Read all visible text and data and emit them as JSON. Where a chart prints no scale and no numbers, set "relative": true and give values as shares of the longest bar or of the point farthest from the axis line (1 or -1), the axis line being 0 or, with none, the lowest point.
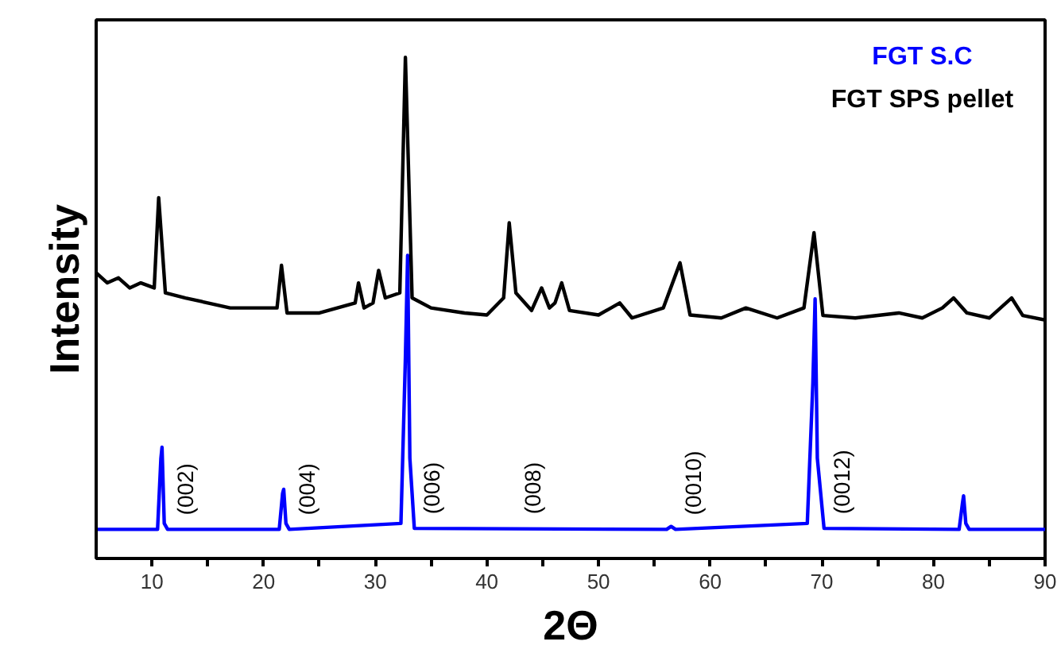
{
  "chart_data": {
    "type": "line",
    "relative": true,
    "xlabel": "2Θ",
    "ylabel": "Intensity",
    "xlim": [
      5,
      90
    ],
    "xticks": [
      10,
      {
        "value": 15,
        "label": null
      },
      20,
      {
        "value": 25,
        "label": null
      },
      30,
      {
        "value": 35,
        "label": null
      },
      40,
      {
        "value": 45,
        "label": null
      },
      50,
      {
        "value": 55,
        "label": null
      },
      60,
      {
        "value": 65,
        "label": null
      },
      70,
      {
        "value": 75,
        "label": null
      },
      80,
      {
        "value": 85,
        "label": null
      },
      90
    ],
    "legend": "top right",
    "grid": false,
    "marker": "none",
    "line_style": "solid",
    "series": [
      {
        "name": "FGT S.C",
        "color": "#0000ff",
        "x": [
          5,
          10.5,
          10.8,
          10.9,
          11.1,
          11.4,
          21.4,
          21.7,
          21.8,
          22.0,
          22.3,
          32.3,
          32.7,
          32.9,
          33.1,
          33.5,
          56.1,
          56.5,
          56.9,
          68.7,
          69.2,
          69.4,
          69.6,
          70.2,
          82.3,
          82.6,
          82.7,
          82.9,
          83.2,
          90
        ],
        "values": [
          0.058,
          0.058,
          0.2,
          0.222,
          0.07,
          0.058,
          0.058,
          0.13,
          0.138,
          0.07,
          0.058,
          0.07,
          0.4,
          0.605,
          0.2,
          0.06,
          0.058,
          0.064,
          0.058,
          0.07,
          0.35,
          0.518,
          0.2,
          0.06,
          0.058,
          0.11,
          0.125,
          0.07,
          0.058,
          0.058
        ]
      },
      {
        "name": "FGT SPS pellet",
        "color": "#000000",
        "x": [
          5,
          6,
          7,
          8,
          9,
          10.2,
          10.6,
          11.2,
          13,
          15,
          17,
          20,
          21.2,
          21.6,
          22.1,
          25,
          28.2,
          28.5,
          29,
          29.8,
          30.3,
          30.9,
          32.2,
          32.7,
          33.3,
          35,
          38,
          40,
          41.5,
          42.0,
          42.6,
          44.0,
          44.9,
          45.6,
          46.1,
          46.7,
          47.4,
          50,
          51.9,
          53,
          55.8,
          57.3,
          58.2,
          61,
          63.2,
          66,
          68.4,
          69.3,
          70.1,
          73,
          76.9,
          79,
          80.8,
          81.8,
          83,
          85,
          87.0,
          88,
          90
        ],
        "values": [
          0.57,
          0.55,
          0.56,
          0.54,
          0.55,
          0.54,
          0.72,
          0.53,
          0.52,
          0.51,
          0.5,
          0.5,
          0.5,
          0.585,
          0.49,
          0.49,
          0.51,
          0.55,
          0.5,
          0.51,
          0.575,
          0.52,
          0.53,
          1.0,
          0.52,
          0.5,
          0.49,
          0.486,
          0.52,
          0.67,
          0.53,
          0.495,
          0.54,
          0.5,
          0.51,
          0.55,
          0.495,
          0.486,
          0.51,
          0.48,
          0.5,
          0.59,
          0.486,
          0.48,
          0.5,
          0.48,
          0.5,
          0.65,
          0.485,
          0.48,
          0.49,
          0.48,
          0.5,
          0.52,
          0.49,
          0.48,
          0.52,
          0.485,
          0.476
        ]
      }
    ],
    "annotations": [
      {
        "text": "(002)",
        "x": 11.4,
        "y": 0.058
      },
      {
        "text": "(004)",
        "x": 22.3,
        "y": 0.058
      },
      {
        "text": "(006)",
        "x": 33.5,
        "y": 0.06
      },
      {
        "text": "(008)",
        "x": 42.5,
        "y": 0.06
      },
      {
        "text": "(0010)",
        "x": 56.9,
        "y": 0.058
      },
      {
        "text": "(0012)",
        "x": 70.2,
        "y": 0.06
      }
    ]
  }
}
